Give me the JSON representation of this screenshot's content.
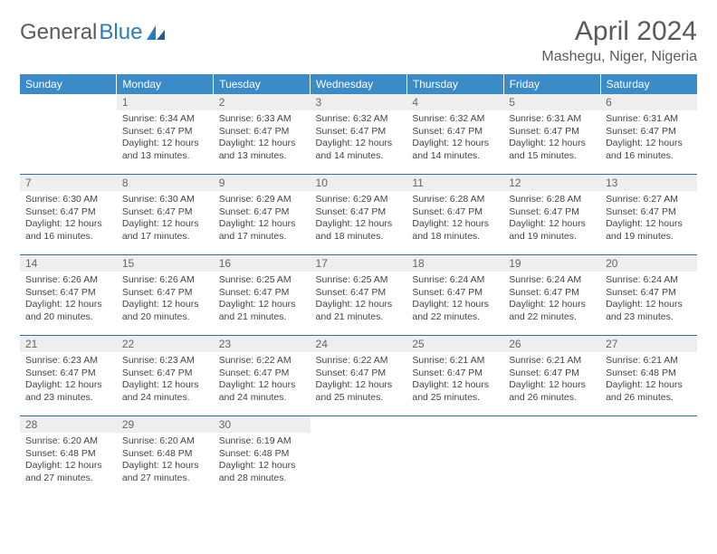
{
  "logo": {
    "text1": "General",
    "text2": "Blue"
  },
  "title": "April 2024",
  "location": "Mashegu, Niger, Nigeria",
  "colors": {
    "header_bg": "#3b8bc8",
    "header_text": "#ffffff",
    "daybar_bg": "#eeeeee",
    "row_border": "#2b6fa3",
    "text": "#444444"
  },
  "day_headers": [
    "Sunday",
    "Monday",
    "Tuesday",
    "Wednesday",
    "Thursday",
    "Friday",
    "Saturday"
  ],
  "weeks": [
    [
      null,
      {
        "n": "1",
        "sr": "Sunrise: 6:34 AM",
        "ss": "Sunset: 6:47 PM",
        "d1": "Daylight: 12 hours",
        "d2": "and 13 minutes."
      },
      {
        "n": "2",
        "sr": "Sunrise: 6:33 AM",
        "ss": "Sunset: 6:47 PM",
        "d1": "Daylight: 12 hours",
        "d2": "and 13 minutes."
      },
      {
        "n": "3",
        "sr": "Sunrise: 6:32 AM",
        "ss": "Sunset: 6:47 PM",
        "d1": "Daylight: 12 hours",
        "d2": "and 14 minutes."
      },
      {
        "n": "4",
        "sr": "Sunrise: 6:32 AM",
        "ss": "Sunset: 6:47 PM",
        "d1": "Daylight: 12 hours",
        "d2": "and 14 minutes."
      },
      {
        "n": "5",
        "sr": "Sunrise: 6:31 AM",
        "ss": "Sunset: 6:47 PM",
        "d1": "Daylight: 12 hours",
        "d2": "and 15 minutes."
      },
      {
        "n": "6",
        "sr": "Sunrise: 6:31 AM",
        "ss": "Sunset: 6:47 PM",
        "d1": "Daylight: 12 hours",
        "d2": "and 16 minutes."
      }
    ],
    [
      {
        "n": "7",
        "sr": "Sunrise: 6:30 AM",
        "ss": "Sunset: 6:47 PM",
        "d1": "Daylight: 12 hours",
        "d2": "and 16 minutes."
      },
      {
        "n": "8",
        "sr": "Sunrise: 6:30 AM",
        "ss": "Sunset: 6:47 PM",
        "d1": "Daylight: 12 hours",
        "d2": "and 17 minutes."
      },
      {
        "n": "9",
        "sr": "Sunrise: 6:29 AM",
        "ss": "Sunset: 6:47 PM",
        "d1": "Daylight: 12 hours",
        "d2": "and 17 minutes."
      },
      {
        "n": "10",
        "sr": "Sunrise: 6:29 AM",
        "ss": "Sunset: 6:47 PM",
        "d1": "Daylight: 12 hours",
        "d2": "and 18 minutes."
      },
      {
        "n": "11",
        "sr": "Sunrise: 6:28 AM",
        "ss": "Sunset: 6:47 PM",
        "d1": "Daylight: 12 hours",
        "d2": "and 18 minutes."
      },
      {
        "n": "12",
        "sr": "Sunrise: 6:28 AM",
        "ss": "Sunset: 6:47 PM",
        "d1": "Daylight: 12 hours",
        "d2": "and 19 minutes."
      },
      {
        "n": "13",
        "sr": "Sunrise: 6:27 AM",
        "ss": "Sunset: 6:47 PM",
        "d1": "Daylight: 12 hours",
        "d2": "and 19 minutes."
      }
    ],
    [
      {
        "n": "14",
        "sr": "Sunrise: 6:26 AM",
        "ss": "Sunset: 6:47 PM",
        "d1": "Daylight: 12 hours",
        "d2": "and 20 minutes."
      },
      {
        "n": "15",
        "sr": "Sunrise: 6:26 AM",
        "ss": "Sunset: 6:47 PM",
        "d1": "Daylight: 12 hours",
        "d2": "and 20 minutes."
      },
      {
        "n": "16",
        "sr": "Sunrise: 6:25 AM",
        "ss": "Sunset: 6:47 PM",
        "d1": "Daylight: 12 hours",
        "d2": "and 21 minutes."
      },
      {
        "n": "17",
        "sr": "Sunrise: 6:25 AM",
        "ss": "Sunset: 6:47 PM",
        "d1": "Daylight: 12 hours",
        "d2": "and 21 minutes."
      },
      {
        "n": "18",
        "sr": "Sunrise: 6:24 AM",
        "ss": "Sunset: 6:47 PM",
        "d1": "Daylight: 12 hours",
        "d2": "and 22 minutes."
      },
      {
        "n": "19",
        "sr": "Sunrise: 6:24 AM",
        "ss": "Sunset: 6:47 PM",
        "d1": "Daylight: 12 hours",
        "d2": "and 22 minutes."
      },
      {
        "n": "20",
        "sr": "Sunrise: 6:24 AM",
        "ss": "Sunset: 6:47 PM",
        "d1": "Daylight: 12 hours",
        "d2": "and 23 minutes."
      }
    ],
    [
      {
        "n": "21",
        "sr": "Sunrise: 6:23 AM",
        "ss": "Sunset: 6:47 PM",
        "d1": "Daylight: 12 hours",
        "d2": "and 23 minutes."
      },
      {
        "n": "22",
        "sr": "Sunrise: 6:23 AM",
        "ss": "Sunset: 6:47 PM",
        "d1": "Daylight: 12 hours",
        "d2": "and 24 minutes."
      },
      {
        "n": "23",
        "sr": "Sunrise: 6:22 AM",
        "ss": "Sunset: 6:47 PM",
        "d1": "Daylight: 12 hours",
        "d2": "and 24 minutes."
      },
      {
        "n": "24",
        "sr": "Sunrise: 6:22 AM",
        "ss": "Sunset: 6:47 PM",
        "d1": "Daylight: 12 hours",
        "d2": "and 25 minutes."
      },
      {
        "n": "25",
        "sr": "Sunrise: 6:21 AM",
        "ss": "Sunset: 6:47 PM",
        "d1": "Daylight: 12 hours",
        "d2": "and 25 minutes."
      },
      {
        "n": "26",
        "sr": "Sunrise: 6:21 AM",
        "ss": "Sunset: 6:47 PM",
        "d1": "Daylight: 12 hours",
        "d2": "and 26 minutes."
      },
      {
        "n": "27",
        "sr": "Sunrise: 6:21 AM",
        "ss": "Sunset: 6:48 PM",
        "d1": "Daylight: 12 hours",
        "d2": "and 26 minutes."
      }
    ],
    [
      {
        "n": "28",
        "sr": "Sunrise: 6:20 AM",
        "ss": "Sunset: 6:48 PM",
        "d1": "Daylight: 12 hours",
        "d2": "and 27 minutes."
      },
      {
        "n": "29",
        "sr": "Sunrise: 6:20 AM",
        "ss": "Sunset: 6:48 PM",
        "d1": "Daylight: 12 hours",
        "d2": "and 27 minutes."
      },
      {
        "n": "30",
        "sr": "Sunrise: 6:19 AM",
        "ss": "Sunset: 6:48 PM",
        "d1": "Daylight: 12 hours",
        "d2": "and 28 minutes."
      },
      null,
      null,
      null,
      null
    ]
  ]
}
